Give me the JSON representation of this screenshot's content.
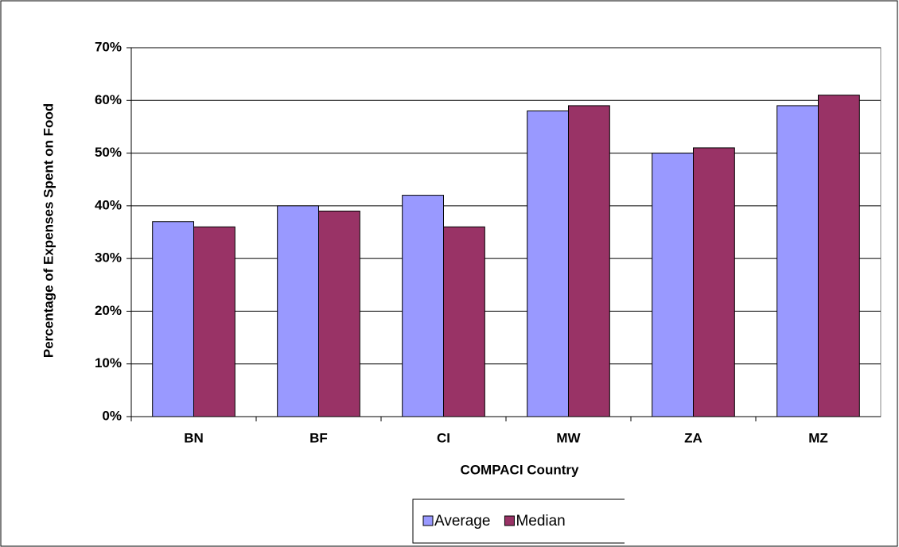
{
  "chart_data": {
    "type": "bar",
    "x_label": "COMPACI Country",
    "y_label": "Percentage of Expenses Spent on Food",
    "categories": [
      "BN",
      "BF",
      "CI",
      "MW",
      "ZA",
      "MZ"
    ],
    "series": [
      {
        "name": "Average",
        "color": "#9999ff",
        "values": [
          37,
          40,
          42,
          58,
          50,
          59
        ]
      },
      {
        "name": "Median",
        "color": "#993366",
        "values": [
          36,
          39,
          36,
          59,
          51,
          61
        ]
      }
    ],
    "ylim": [
      0,
      70
    ],
    "yticks": [
      {
        "value": 0,
        "label": "0%"
      },
      {
        "value": 10,
        "label": "10%"
      },
      {
        "value": 20,
        "label": "20%"
      },
      {
        "value": 30,
        "label": "30%"
      },
      {
        "value": 40,
        "label": "40%"
      },
      {
        "value": 50,
        "label": "50%"
      },
      {
        "value": 60,
        "label": "60%"
      },
      {
        "value": 70,
        "label": "70%"
      }
    ],
    "grid": true,
    "legend": "bottom"
  }
}
